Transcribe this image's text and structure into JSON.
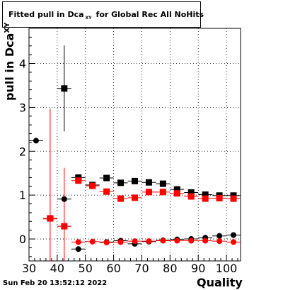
{
  "title": {
    "prefix": "Fitted pull in Dca",
    "subscript": "XY",
    "suffix": "for Global Rec All NoHits"
  },
  "y_axis_label": {
    "main": "pull in Dca",
    "subscript": "XY"
  },
  "x_axis_label": "Quality",
  "timestamp": "Sun Feb 20 13:52:12 2022",
  "chart_data": {
    "type": "scatter",
    "title": "Fitted pull in Dca XY for Global Rec All NoHits",
    "xlabel": "Quality",
    "ylabel": "pull in Dca XY",
    "xlim": [
      30,
      105
    ],
    "ylim": [
      -0.5,
      4.8
    ],
    "x_ticks": [
      30,
      40,
      50,
      60,
      70,
      80,
      90,
      100
    ],
    "y_ticks": [
      0,
      1,
      2,
      3,
      4
    ],
    "grid": true,
    "x_bin_halfwidth": 2.5,
    "series": [
      {
        "marker": "square",
        "color": "#000000",
        "x": [
          37.5,
          42.5,
          47.5,
          52.5,
          57.5,
          62.5,
          67.5,
          72.5,
          77.5,
          82.5,
          87.5,
          92.5,
          97.5,
          102.5
        ],
        "y": [
          0.47,
          3.43,
          1.4,
          1.23,
          1.39,
          1.28,
          1.32,
          1.29,
          1.26,
          1.13,
          1.06,
          1.01,
          0.99,
          0.99
        ],
        "yerr": [
          0.05,
          0.98,
          0.06,
          0.05,
          0.07,
          0.04,
          0.03,
          0.03,
          0.03,
          0.03,
          0.02,
          0.02,
          0.02,
          0.02
        ]
      },
      {
        "marker": "square",
        "color": "#ff0000",
        "x": [
          37.5,
          42.5,
          47.5,
          52.5,
          57.5,
          62.5,
          67.5,
          72.5,
          77.5,
          82.5,
          87.5,
          92.5,
          97.5,
          102.5
        ],
        "y": [
          0.47,
          0.29,
          1.33,
          1.21,
          1.08,
          0.92,
          0.94,
          1.07,
          1.07,
          1.04,
          0.97,
          0.92,
          0.93,
          0.92
        ],
        "yerr": [
          2.5,
          1.33,
          0.05,
          0.05,
          0.04,
          0.04,
          0.03,
          0.03,
          0.03,
          0.03,
          0.02,
          0.02,
          0.02,
          0.02
        ]
      },
      {
        "marker": "circle",
        "color": "#000000",
        "x": [
          32.5,
          37.5,
          42.5,
          47.5,
          57.5,
          62.5,
          67.5,
          72.5,
          77.5,
          82.5,
          87.5,
          92.5,
          97.5,
          102.5
        ],
        "y": [
          2.24,
          0.46,
          0.91,
          -0.23,
          -0.07,
          -0.04,
          -0.11,
          -0.06,
          -0.03,
          -0.01,
          0.0,
          0.03,
          0.07,
          0.09
        ],
        "yerr": [
          0.02,
          0.02,
          0.05,
          0.06,
          0.04,
          0.03,
          0.03,
          0.03,
          0.02,
          0.02,
          0.02,
          0.02,
          0.02,
          0.02
        ]
      },
      {
        "marker": "circle",
        "color": "#ff0000",
        "x": [
          37.5,
          42.5,
          47.5,
          52.5,
          57.5,
          62.5,
          67.5,
          72.5,
          77.5,
          82.5,
          87.5,
          92.5,
          97.5,
          102.5
        ],
        "y": [
          0.46,
          0.29,
          -0.07,
          -0.06,
          -0.08,
          -0.07,
          -0.05,
          -0.05,
          -0.04,
          -0.04,
          -0.04,
          -0.04,
          -0.05,
          -0.07
        ],
        "yerr": [
          0.03,
          0.03,
          0.04,
          0.03,
          0.03,
          0.03,
          0.02,
          0.02,
          0.02,
          0.02,
          0.02,
          0.02,
          0.02,
          0.02
        ]
      }
    ]
  }
}
